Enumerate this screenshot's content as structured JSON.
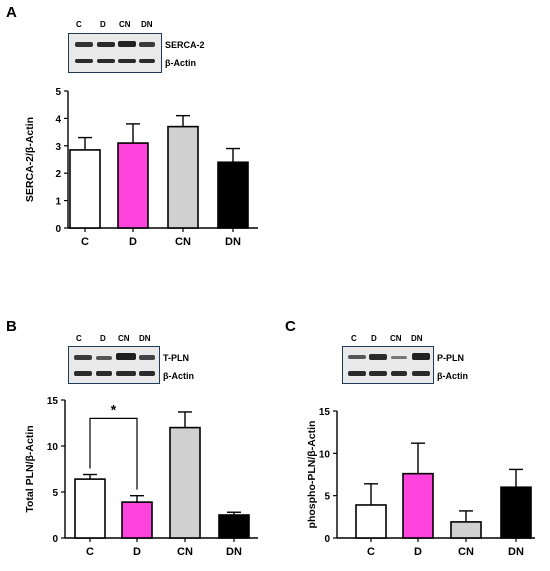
{
  "panels": {
    "A": {
      "letter": "A",
      "lanes": [
        "C",
        "D",
        "CN",
        "DN"
      ],
      "blot_labels": [
        "SERCA-2",
        "β-Actin"
      ]
    },
    "B": {
      "letter": "B",
      "lanes": [
        "C",
        "D",
        "CN",
        "DN"
      ],
      "blot_labels": [
        "T-PLN",
        "β-Actin"
      ],
      "significance": "*"
    },
    "C": {
      "letter": "C",
      "lanes": [
        "C",
        "D",
        "CN",
        "DN"
      ],
      "blot_labels": [
        "P-PLN",
        "β-Actin"
      ]
    }
  },
  "chart_data": [
    {
      "id": "A",
      "type": "bar",
      "categories": [
        "C",
        "D",
        "CN",
        "DN"
      ],
      "values": [
        2.85,
        3.1,
        3.7,
        2.4
      ],
      "errors": [
        0.45,
        0.7,
        0.4,
        0.5
      ],
      "ylabel": "SERCA-2/β-Actin",
      "ylim": [
        0,
        5
      ],
      "yticks": [
        "0",
        "1",
        "2",
        "3",
        "4",
        "5"
      ],
      "colors": [
        "#ffffff",
        "#ff44dd",
        "#d0d0d0",
        "#000000"
      ]
    },
    {
      "id": "B",
      "type": "bar",
      "categories": [
        "C",
        "D",
        "CN",
        "DN"
      ],
      "values": [
        6.4,
        3.9,
        12.0,
        2.5
      ],
      "errors": [
        0.5,
        0.7,
        1.7,
        0.3
      ],
      "ylabel": "Total PLN/β-Actin",
      "ylim": [
        0,
        15
      ],
      "yticks": [
        "0",
        "5",
        "10",
        "15"
      ],
      "colors": [
        "#ffffff",
        "#ff44dd",
        "#d0d0d0",
        "#000000"
      ],
      "significance": {
        "from": "C",
        "to": "D",
        "label": "*"
      }
    },
    {
      "id": "C",
      "type": "bar",
      "categories": [
        "C",
        "D",
        "CN",
        "DN"
      ],
      "values": [
        3.9,
        7.6,
        1.9,
        6.0
      ],
      "errors": [
        2.5,
        3.6,
        1.3,
        2.1
      ],
      "ylabel": "phospho-PLN/β-Actin",
      "ylim": [
        0,
        15
      ],
      "yticks": [
        "0",
        "5",
        "10",
        "15"
      ],
      "colors": [
        "#ffffff",
        "#ff44dd",
        "#d0d0d0",
        "#000000"
      ]
    }
  ]
}
